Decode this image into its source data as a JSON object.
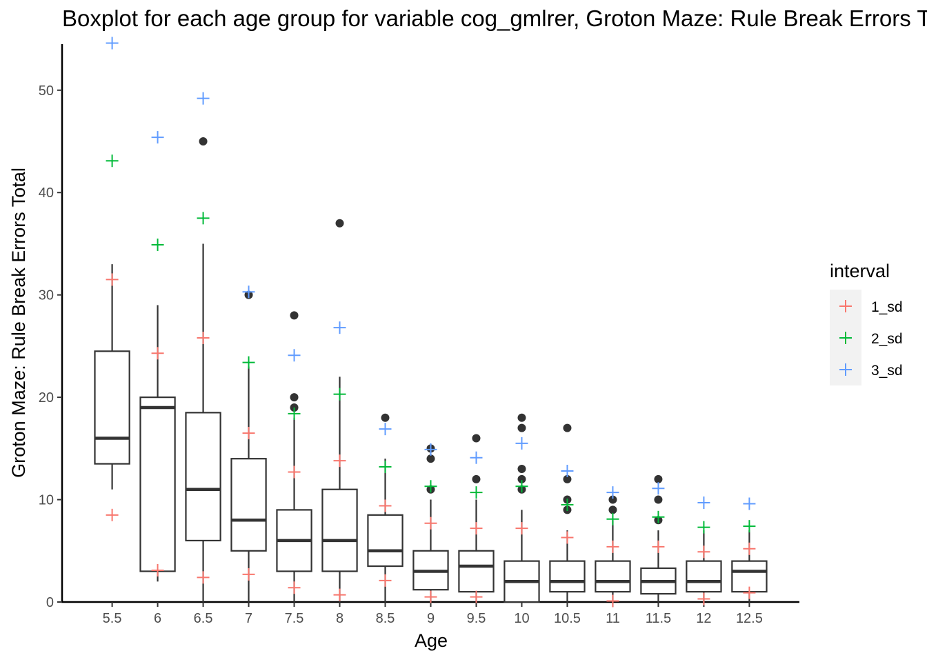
{
  "chart_data": {
    "type": "boxplot",
    "title": "Boxplot for each age group for variable cog_gmlrer, Groton Maze: Rule Break Errors Total",
    "xlabel": "Age",
    "ylabel": "Groton Maze: Rule Break Errors Total",
    "ylim": [
      0,
      54.5
    ],
    "yticks": [
      0,
      10,
      20,
      30,
      40,
      50
    ],
    "grid": false,
    "legend": {
      "title": "interval",
      "placement": "right",
      "entries": [
        {
          "name": "1_sd",
          "color": "#f8766d"
        },
        {
          "name": "2_sd",
          "color": "#00ba38"
        },
        {
          "name": "3_sd",
          "color": "#619cff"
        }
      ]
    },
    "categories": [
      "5.5",
      "6",
      "6.5",
      "7",
      "7.5",
      "8",
      "8.5",
      "9",
      "9.5",
      "10",
      "10.5",
      "11",
      "11.5",
      "12",
      "12.5"
    ],
    "boxes": [
      {
        "q1": 13.5,
        "median": 16,
        "q3": 24.5,
        "whisker_low": 11,
        "whisker_high": 33,
        "outliers": []
      },
      {
        "q1": 3,
        "median": 19,
        "q3": 20,
        "whisker_low": 2,
        "whisker_high": 29,
        "outliers": []
      },
      {
        "q1": 6,
        "median": 11,
        "q3": 18.5,
        "whisker_low": 0,
        "whisker_high": 35,
        "outliers": [
          45
        ]
      },
      {
        "q1": 5,
        "median": 8,
        "q3": 14,
        "whisker_low": 0,
        "whisker_high": 23,
        "outliers": [
          30
        ]
      },
      {
        "q1": 3,
        "median": 6,
        "q3": 9,
        "whisker_low": 0,
        "whisker_high": 18,
        "outliers": [
          19,
          20,
          28
        ]
      },
      {
        "q1": 3,
        "median": 6,
        "q3": 11,
        "whisker_low": 0,
        "whisker_high": 22,
        "outliers": [
          37
        ]
      },
      {
        "q1": 3.5,
        "median": 5,
        "q3": 8.5,
        "whisker_low": 0,
        "whisker_high": 14,
        "outliers": [
          18
        ]
      },
      {
        "q1": 1.2,
        "median": 3,
        "q3": 5,
        "whisker_low": 0,
        "whisker_high": 10,
        "outliers": [
          11,
          14,
          15
        ]
      },
      {
        "q1": 1,
        "median": 3.5,
        "q3": 5,
        "whisker_low": 0,
        "whisker_high": 10,
        "outliers": [
          12,
          16
        ]
      },
      {
        "q1": 0,
        "median": 2,
        "q3": 4,
        "whisker_low": 0,
        "whisker_high": 9,
        "outliers": [
          11,
          12,
          13,
          17,
          18
        ]
      },
      {
        "q1": 1,
        "median": 2,
        "q3": 4,
        "whisker_low": 0,
        "whisker_high": 7,
        "outliers": [
          9,
          10,
          12,
          17
        ]
      },
      {
        "q1": 1,
        "median": 2,
        "q3": 4,
        "whisker_low": 0,
        "whisker_high": 8,
        "outliers": [
          9,
          10
        ]
      },
      {
        "q1": 0.8,
        "median": 2,
        "q3": 3.3,
        "whisker_low": 0,
        "whisker_high": 7,
        "outliers": [
          8,
          10,
          12
        ]
      },
      {
        "q1": 1,
        "median": 2,
        "q3": 4,
        "whisker_low": 0,
        "whisker_high": 7,
        "outliers": []
      },
      {
        "q1": 1,
        "median": 3,
        "q3": 4,
        "whisker_low": 0,
        "whisker_high": 7,
        "outliers": []
      }
    ],
    "interval_series": [
      {
        "name": "1_sd",
        "points": [
          {
            "category": "5.5",
            "values": [
              8.5,
              31.5
            ]
          },
          {
            "category": "6",
            "values": [
              3.1,
              24.3
            ]
          },
          {
            "category": "6.5",
            "values": [
              2.4,
              25.8
            ]
          },
          {
            "category": "7",
            "values": [
              2.7,
              16.5
            ]
          },
          {
            "category": "7.5",
            "values": [
              1.4,
              12.7
            ]
          },
          {
            "category": "8",
            "values": [
              0.7,
              13.8
            ]
          },
          {
            "category": "8.5",
            "values": [
              2.1,
              9.4
            ]
          },
          {
            "category": "9",
            "values": [
              0.5,
              7.7
            ]
          },
          {
            "category": "9.5",
            "values": [
              0.5,
              7.2
            ]
          },
          {
            "category": "10",
            "values": [
              7.2
            ]
          },
          {
            "category": "10.5",
            "values": [
              6.3
            ]
          },
          {
            "category": "11",
            "values": [
              0.1,
              5.4
            ]
          },
          {
            "category": "11.5",
            "values": [
              5.4
            ]
          },
          {
            "category": "12",
            "values": [
              0.3,
              4.9
            ]
          },
          {
            "category": "12.5",
            "values": [
              0.9,
              5.2
            ]
          }
        ]
      },
      {
        "name": "2_sd",
        "points": [
          {
            "category": "5.5",
            "values": [
              43.1
            ]
          },
          {
            "category": "6",
            "values": [
              34.9
            ]
          },
          {
            "category": "6.5",
            "values": [
              37.5
            ]
          },
          {
            "category": "7",
            "values": [
              23.4
            ]
          },
          {
            "category": "7.5",
            "values": [
              18.4
            ]
          },
          {
            "category": "8",
            "values": [
              20.3
            ]
          },
          {
            "category": "8.5",
            "values": [
              13.2
            ]
          },
          {
            "category": "9",
            "values": [
              11.3
            ]
          },
          {
            "category": "9.5",
            "values": [
              10.7
            ]
          },
          {
            "category": "10",
            "values": [
              11.3
            ]
          },
          {
            "category": "10.5",
            "values": [
              9.5
            ]
          },
          {
            "category": "11",
            "values": [
              8.1
            ]
          },
          {
            "category": "11.5",
            "values": [
              8.3
            ]
          },
          {
            "category": "12",
            "values": [
              7.3
            ]
          },
          {
            "category": "12.5",
            "values": [
              7.4
            ]
          }
        ]
      },
      {
        "name": "3_sd",
        "points": [
          {
            "category": "5.5",
            "values": [
              54.6
            ]
          },
          {
            "category": "6",
            "values": [
              45.4
            ]
          },
          {
            "category": "6.5",
            "values": [
              49.2
            ]
          },
          {
            "category": "7",
            "values": [
              30.3
            ]
          },
          {
            "category": "7.5",
            "values": [
              24.1
            ]
          },
          {
            "category": "8",
            "values": [
              26.8
            ]
          },
          {
            "category": "8.5",
            "values": [
              16.9
            ]
          },
          {
            "category": "9",
            "values": [
              14.9
            ]
          },
          {
            "category": "9.5",
            "values": [
              14.1
            ]
          },
          {
            "category": "10",
            "values": [
              15.5
            ]
          },
          {
            "category": "10.5",
            "values": [
              12.8
            ]
          },
          {
            "category": "11",
            "values": [
              10.7
            ]
          },
          {
            "category": "11.5",
            "values": [
              11.1
            ]
          },
          {
            "category": "12",
            "values": [
              9.7
            ]
          },
          {
            "category": "12.5",
            "values": [
              9.6
            ]
          }
        ]
      }
    ]
  }
}
